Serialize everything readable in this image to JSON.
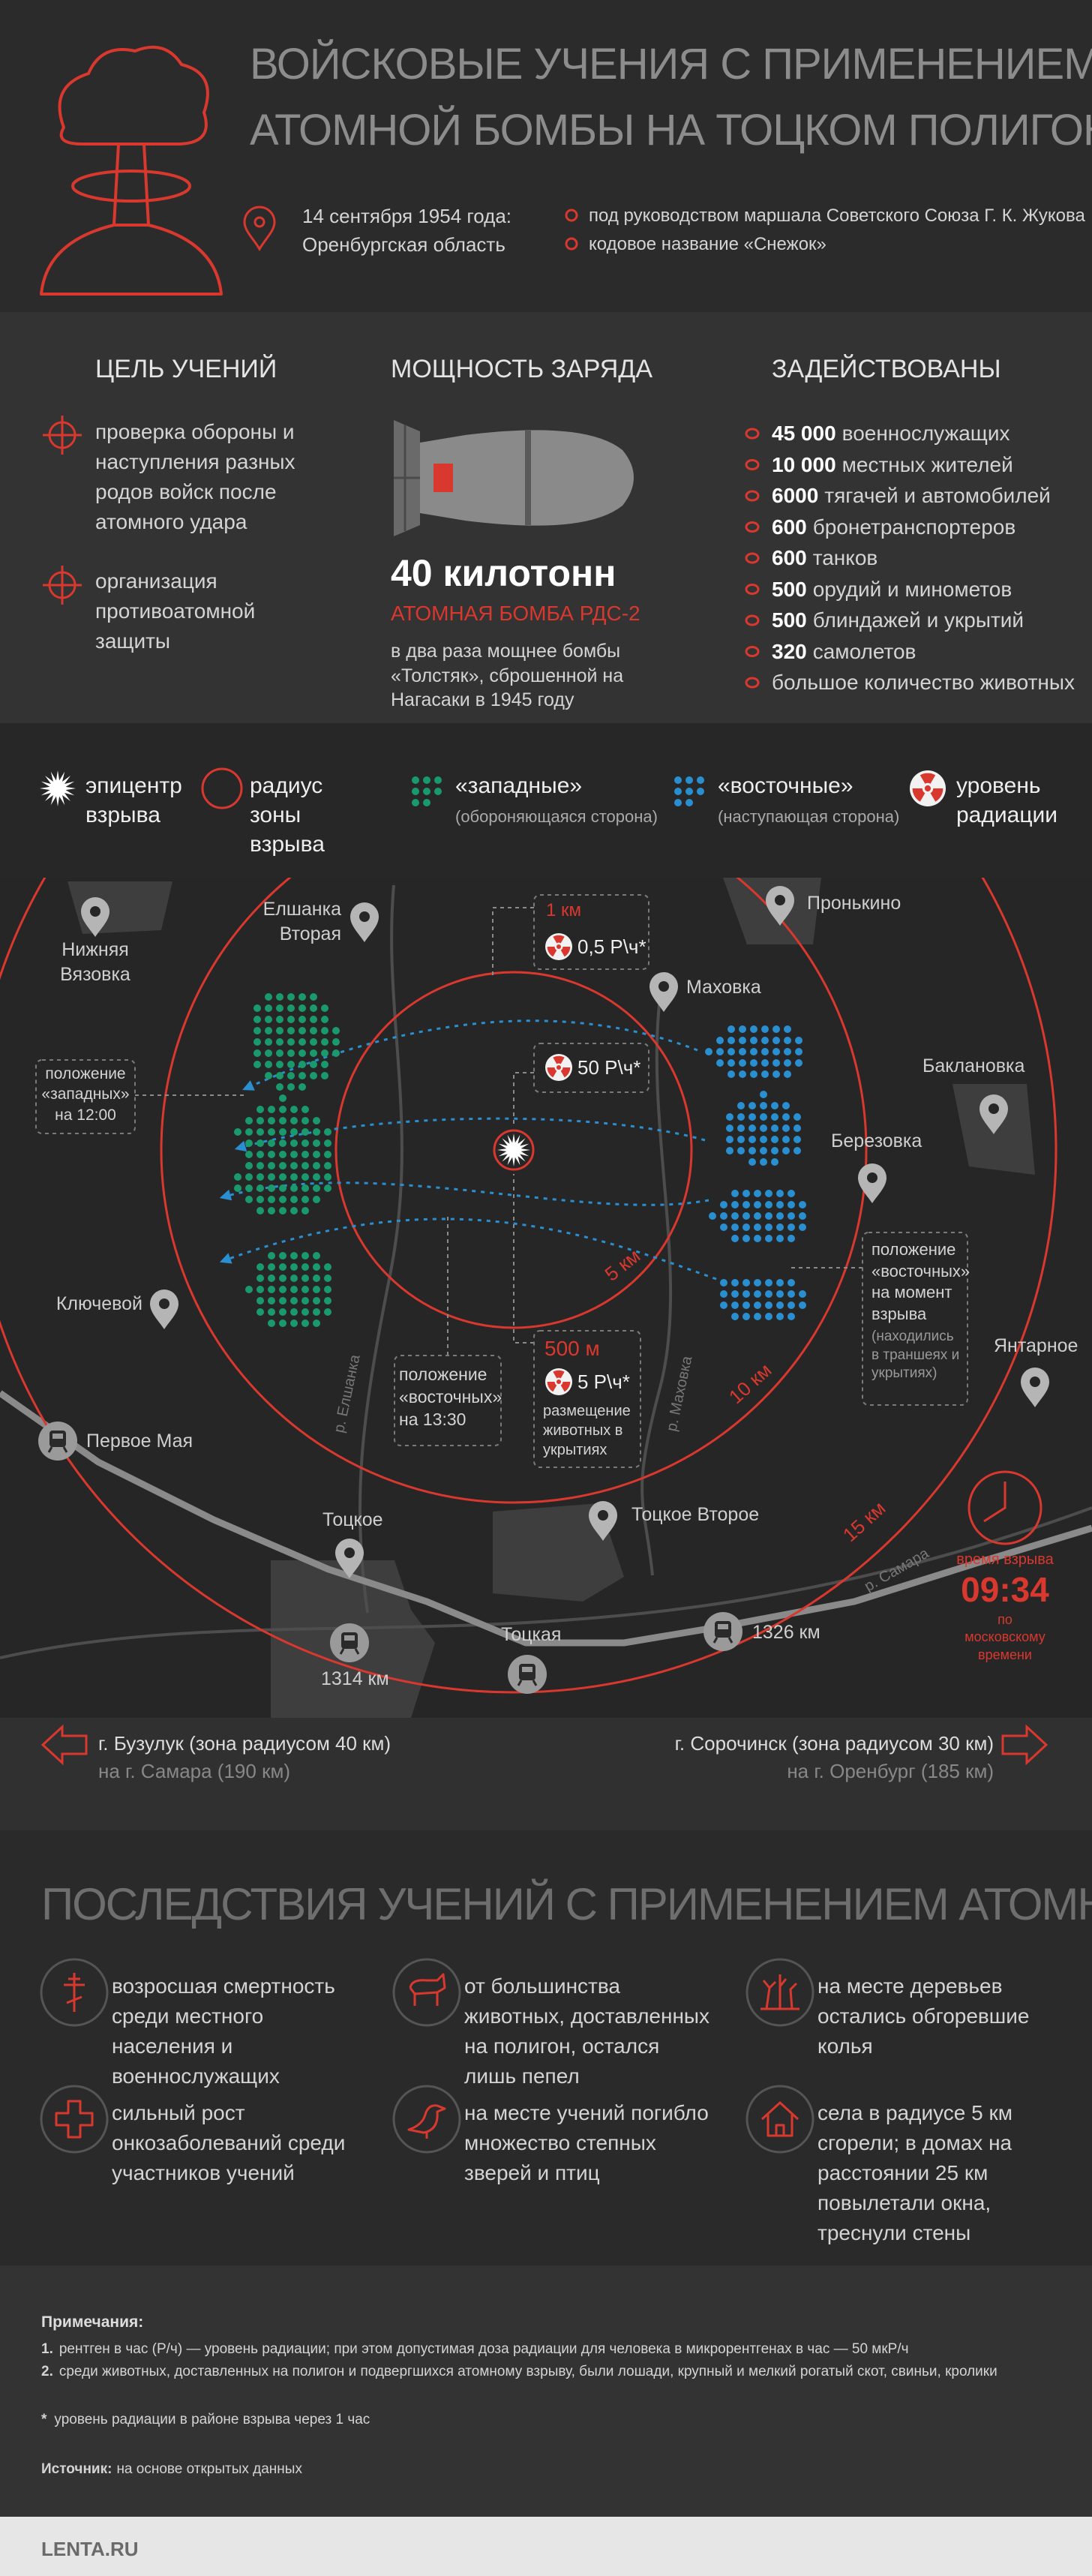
{
  "header": {
    "title": [
      "ВОЙСКОВЫЕ УЧЕНИЯ С ПРИМЕНЕНИЕМ",
      "АТОМНОЙ БОМБЫ НА ТОЦКОМ ПОЛИГОНЕ"
    ],
    "date": "14 сентября 1954 года:",
    "region": "Оренбургская область",
    "facts": [
      "под руководством маршала Советского Союза Г. К. Жукова",
      "кодовое название «Снежок»"
    ]
  },
  "goals": {
    "heading": "ЦЕЛЬ УЧЕНИЙ",
    "items": [
      "проверка обороны и наступления разных родов войск после атомного удара",
      "организация противоатомной защиты"
    ]
  },
  "power": {
    "heading": "МОЩНОСТЬ ЗАРЯДА",
    "yield": "40 килотонн",
    "bomb": "АТОМНАЯ БОМБА РДС-2",
    "note": "в два раза мощнее бомбы «Толстяк», сброшенной на Нагасаки в 1945 году"
  },
  "involved": {
    "heading": "ЗАДЕЙСТВОВАНЫ",
    "items": [
      {
        "number": "45 000",
        "label": "военнослужащих"
      },
      {
        "number": "10 000",
        "label": "местных жителей"
      },
      {
        "number": "6000",
        "label": "тягачей и автомобилей"
      },
      {
        "number": "600",
        "label": "бронетранспортеров"
      },
      {
        "number": "600",
        "label": "танков"
      },
      {
        "number": "500",
        "label": "орудий и минометов"
      },
      {
        "number": "500",
        "label": "блиндажей и укрытий"
      },
      {
        "number": "320",
        "label": "самолетов"
      },
      {
        "label": "большое количество животных"
      }
    ]
  },
  "legend": {
    "epicenter": "эпицентр взрыва",
    "radius": "радиус зоны взрыва",
    "west": {
      "name": "«западные»",
      "note": "(обороняющаяся сторона)"
    },
    "east": {
      "name": "«восточные»",
      "note": "(наступающая сторона)"
    },
    "radiation": "уровень радиации"
  },
  "map": {
    "places": [
      "Нижняя Вязовка",
      "Елшанка Вторая",
      "Пронькино",
      "Маховка",
      "Баклановка",
      "Березовка",
      "Ключевой",
      "Янтарное",
      "Тоцкое",
      "Тоцкое Второе"
    ],
    "stations": [
      "Первое Мая",
      "1314 км",
      "Тоцкая",
      "1326 км"
    ],
    "rivers": [
      "р. Елшанка",
      "р. Маховка",
      "р. Самара"
    ],
    "radii": [
      "5 км",
      "10 км",
      "15 км"
    ],
    "callouts": {
      "ring_1km": {
        "distance": "1 км",
        "radiation": "0,5 Р\\ч*"
      },
      "ring_inner": {
        "radiation": "50 Р\\ч*"
      },
      "ring_500m": {
        "distance": "500 м",
        "radiation": "5 Р\\ч*",
        "note": "размещение животных в укрытиях"
      },
      "west_noon": "положение «западных» на 12:00",
      "east_1330": "положение «восточных» на 13:30",
      "east_blast": {
        "text": "положение «восточных» на момент взрыва",
        "note": "(находились в траншеях и укрытиях)"
      }
    },
    "time": {
      "label": "время взрыва",
      "value": "09:34",
      "note": "по московскому времени"
    }
  },
  "directions": [
    {
      "city": "г. Бузулук (зона радиусом 40 км)",
      "road": "на г. Самара (190 км)"
    },
    {
      "city": "г. Сорочинск (зона радиусом 30 км)",
      "road": "на г. Оренбург (185 км)"
    }
  ],
  "consequences": {
    "heading": "ПОСЛЕДСТВИЯ УЧЕНИЙ С ПРИМЕНЕНИЕМ АТОМНОЙ БОМБЫ",
    "items": [
      "возросшая смертность среди местного населения и военнослужащих",
      "от большинства животных, доставленных на полигон, остался лишь пепел",
      "на месте деревьев остались обгоревшие колья",
      "сильный рост онкозаболеваний среди участников учений",
      "на месте учений погибло множество степных зверей и птиц",
      "села в радиусе 5 км сгорели; в домах на расстоянии 25 км повылетали окна, треснули стены"
    ]
  },
  "notes": {
    "heading": "Примечания:",
    "items": [
      {
        "marker": "1.",
        "text": "рентген в час (Р/ч) — уровень радиации; при этом допустимая доза радиации для человека в микрорентгенах в час — 50 мкР/ч"
      },
      {
        "marker": "2.",
        "text": "среди животных, доставленных на полигон и подвергшихся атомному взрыву, были лошади, крупный и мелкий рогатый скот, свиньи, кролики"
      }
    ],
    "footnote": {
      "marker": "*",
      "text": "уровень радиации в районе взрыва через 1 час"
    },
    "source": {
      "label": "Источник:",
      "text": "на основе открытых данных"
    }
  },
  "footer": {
    "brand": "LENTA.RU"
  }
}
